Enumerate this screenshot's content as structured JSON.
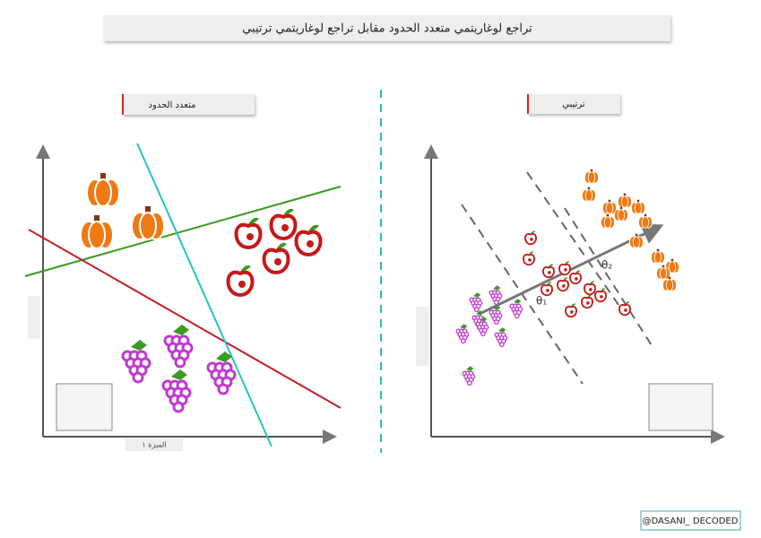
{
  "header": {
    "title": "تراجع لوغاريتمي متعدد الحدود مقابل تراجع لوغاريتمي ترتيبي"
  },
  "left_panel": {
    "label": "متعدد الحدود",
    "x_axis": "الميزة ١"
  },
  "right_panel": {
    "label": "ترتيبي",
    "theta_1": "θ₁",
    "theta_2": "θ₂"
  },
  "footer": {
    "credit": "@DASANI_ DECODED"
  }
}
